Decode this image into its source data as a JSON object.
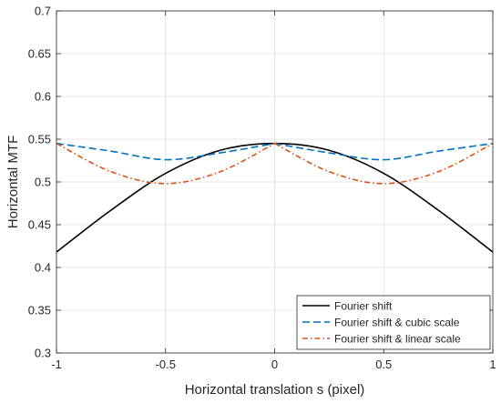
{
  "chart_data": {
    "type": "line",
    "title": "",
    "xlabel": "Horizontal translation s (pixel)",
    "ylabel": "Horizontal MTF",
    "xlim": [
      -1,
      1
    ],
    "ylim": [
      0.3,
      0.7
    ],
    "xticks": [
      -1,
      -0.5,
      0,
      0.5,
      1
    ],
    "xtick_labels": [
      "-1",
      "-0.5",
      "0",
      "0.5",
      "1"
    ],
    "yticks": [
      0.3,
      0.35,
      0.4,
      0.45,
      0.5,
      0.55,
      0.6,
      0.65,
      0.7
    ],
    "ytick_labels": [
      "0.3",
      "0.35",
      "0.4",
      "0.45",
      "0.5",
      "0.55",
      "0.6",
      "0.65",
      "0.7"
    ],
    "grid": true,
    "legend_position": "bottom-right",
    "series": [
      {
        "name": "Fourier shift",
        "color": "#000000",
        "dash": "solid",
        "x": [
          -1,
          -0.75,
          -0.5,
          -0.25,
          0,
          0.25,
          0.5,
          0.75,
          1
        ],
        "y": [
          0.418,
          0.467,
          0.51,
          0.537,
          0.545,
          0.537,
          0.51,
          0.467,
          0.418
        ]
      },
      {
        "name": "Fourier shift & cubic scale",
        "color": "#0072BD",
        "dash": "dashed",
        "x": [
          -1,
          -0.75,
          -0.5,
          -0.25,
          0,
          0.25,
          0.5,
          0.75,
          1
        ],
        "y": [
          0.545,
          0.536,
          0.526,
          0.534,
          0.545,
          0.534,
          0.526,
          0.536,
          0.545
        ]
      },
      {
        "name": "Fourier shift & linear scale",
        "color": "#D95319",
        "dash": "dashdot",
        "x": [
          -1,
          -0.75,
          -0.5,
          -0.25,
          0,
          0.25,
          0.5,
          0.75,
          1
        ],
        "y": [
          0.545,
          0.512,
          0.498,
          0.512,
          0.545,
          0.512,
          0.498,
          0.512,
          0.545
        ]
      }
    ]
  }
}
